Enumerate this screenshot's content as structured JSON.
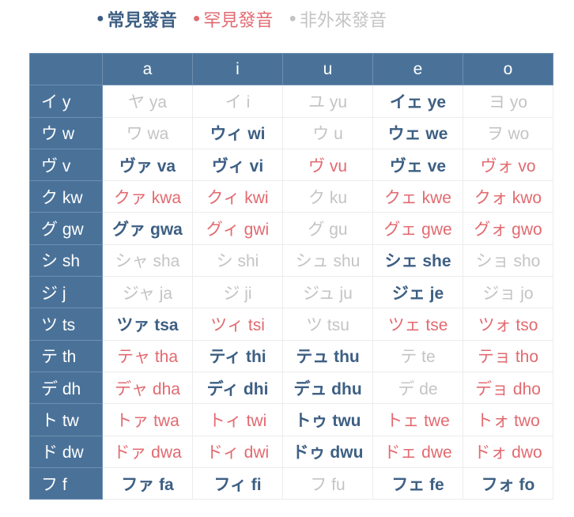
{
  "legend": [
    {
      "label": "常見發音",
      "color": "#3d5f83"
    },
    {
      "label": "罕見發音",
      "color": "#e26a70"
    },
    {
      "label": "非外來發音",
      "color": "#c4c4c4"
    }
  ],
  "columns": [
    "a",
    "i",
    "u",
    "e",
    "o"
  ],
  "rows": [
    {
      "label": "イ y",
      "cells": [
        [
          "ヤ ya",
          "n"
        ],
        [
          "イ i",
          "n"
        ],
        [
          "ユ yu",
          "n"
        ],
        [
          "イェ ye",
          "c"
        ],
        [
          "ヨ yo",
          "n"
        ]
      ]
    },
    {
      "label": "ウ w",
      "cells": [
        [
          "ワ wa",
          "n"
        ],
        [
          "ウィ wi",
          "c"
        ],
        [
          "ウ u",
          "n"
        ],
        [
          "ウェ we",
          "c"
        ],
        [
          "ヲ wo",
          "n"
        ]
      ]
    },
    {
      "label": "ヴ v",
      "cells": [
        [
          "ヴァ va",
          "c"
        ],
        [
          "ヴィ vi",
          "c"
        ],
        [
          "ヴ vu",
          "r"
        ],
        [
          "ヴェ ve",
          "c"
        ],
        [
          "ヴォ vo",
          "r"
        ]
      ]
    },
    {
      "label": "ク kw",
      "cells": [
        [
          "クァ kwa",
          "r"
        ],
        [
          "クィ kwi",
          "r"
        ],
        [
          "ク ku",
          "n"
        ],
        [
          "クェ kwe",
          "r"
        ],
        [
          "クォ kwo",
          "r"
        ]
      ]
    },
    {
      "label": "グ gw",
      "cells": [
        [
          "グァ gwa",
          "c"
        ],
        [
          "グィ gwi",
          "r"
        ],
        [
          "グ gu",
          "n"
        ],
        [
          "グェ gwe",
          "r"
        ],
        [
          "グォ gwo",
          "r"
        ]
      ]
    },
    {
      "label": "シ sh",
      "cells": [
        [
          "シャ sha",
          "n"
        ],
        [
          "シ shi",
          "n"
        ],
        [
          "シュ shu",
          "n"
        ],
        [
          "シェ she",
          "c"
        ],
        [
          "ショ sho",
          "n"
        ]
      ]
    },
    {
      "label": "ジ j",
      "cells": [
        [
          "ジャ ja",
          "n"
        ],
        [
          "ジ ji",
          "n"
        ],
        [
          "ジュ ju",
          "n"
        ],
        [
          "ジェ je",
          "c"
        ],
        [
          "ジョ jo",
          "n"
        ]
      ]
    },
    {
      "label": "ツ ts",
      "cells": [
        [
          "ツァ tsa",
          "c"
        ],
        [
          "ツィ tsi",
          "r"
        ],
        [
          "ツ tsu",
          "n"
        ],
        [
          "ツェ tse",
          "r"
        ],
        [
          "ツォ tso",
          "r"
        ]
      ]
    },
    {
      "label": "テ th",
      "cells": [
        [
          "テャ tha",
          "r"
        ],
        [
          "ティ thi",
          "c"
        ],
        [
          "テュ thu",
          "c"
        ],
        [
          "テ te",
          "n"
        ],
        [
          "テョ tho",
          "r"
        ]
      ]
    },
    {
      "label": "デ dh",
      "cells": [
        [
          "デャ dha",
          "r"
        ],
        [
          "ディ dhi",
          "c"
        ],
        [
          "デュ dhu",
          "c"
        ],
        [
          "デ de",
          "n"
        ],
        [
          "デョ dho",
          "r"
        ]
      ]
    },
    {
      "label": "ト tw",
      "cells": [
        [
          "トァ twa",
          "r"
        ],
        [
          "トィ twi",
          "r"
        ],
        [
          "トゥ twu",
          "c"
        ],
        [
          "トェ twe",
          "r"
        ],
        [
          "トォ two",
          "r"
        ]
      ]
    },
    {
      "label": "ド dw",
      "cells": [
        [
          "ドァ dwa",
          "r"
        ],
        [
          "ドィ dwi",
          "r"
        ],
        [
          "ドゥ dwu",
          "c"
        ],
        [
          "ドェ dwe",
          "r"
        ],
        [
          "ドォ dwo",
          "r"
        ]
      ]
    },
    {
      "label": "フ f",
      "cells": [
        [
          "ファ fa",
          "c"
        ],
        [
          "フィ fi",
          "c"
        ],
        [
          "フ fu",
          "n"
        ],
        [
          "フェ fe",
          "c"
        ],
        [
          "フォ fo",
          "c"
        ]
      ]
    }
  ]
}
